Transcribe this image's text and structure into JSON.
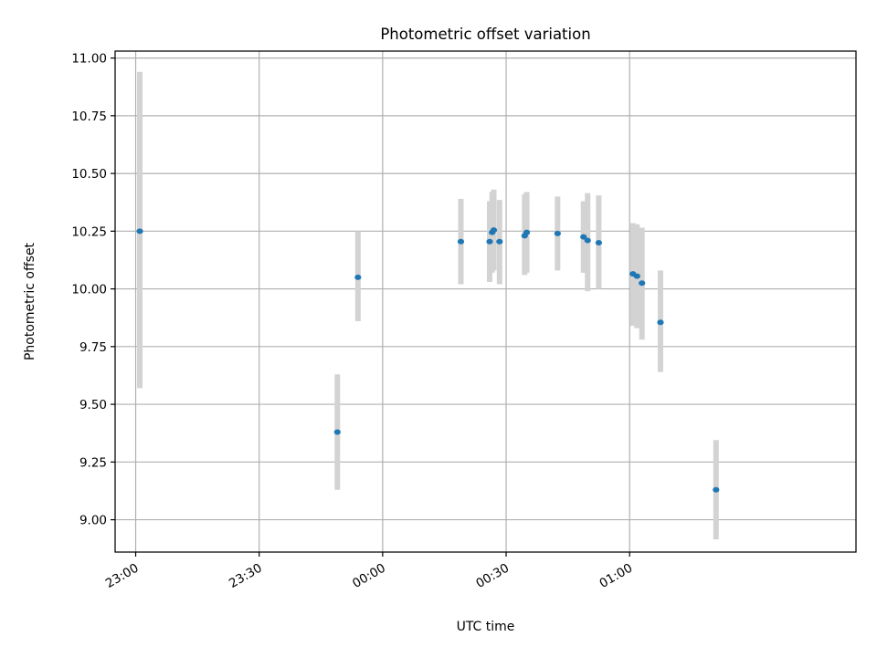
{
  "chart_data": {
    "type": "scatter",
    "title": "Photometric offset variation",
    "xlabel": "UTC time",
    "ylabel": "Photometric offset",
    "x_is_time": true,
    "xlim": [
      "22:55",
      "01:55"
    ],
    "ylim": [
      8.86,
      11.03
    ],
    "x_ticks": [
      "23:00",
      "23:30",
      "00:00",
      "00:30",
      "01:00"
    ],
    "y_ticks": [
      "9.00",
      "9.25",
      "9.50",
      "9.75",
      "10.00",
      "10.25",
      "10.50",
      "10.75",
      "11.00"
    ],
    "grid": true,
    "point_color": "#1f77b4",
    "errorbar_color": "#d3d3d3",
    "series": [
      {
        "points": [
          {
            "x": "23:01",
            "y": 10.25,
            "low": 9.57,
            "high": 10.94
          },
          {
            "x": "23:49",
            "y": 9.38,
            "low": 9.13,
            "high": 9.63
          },
          {
            "x": "23:54",
            "y": 10.05,
            "low": 9.86,
            "high": 10.25
          },
          {
            "x": "00:19",
            "y": 10.205,
            "low": 10.02,
            "high": 10.39
          },
          {
            "x": "00:26",
            "y": 10.205,
            "low": 10.03,
            "high": 10.38
          },
          {
            "x": "00:26.6",
            "y": 10.245,
            "low": 10.07,
            "high": 10.42
          },
          {
            "x": "00:27",
            "y": 10.255,
            "low": 10.08,
            "high": 10.43
          },
          {
            "x": "00:28.4",
            "y": 10.205,
            "low": 10.02,
            "high": 10.385
          },
          {
            "x": "00:34.5",
            "y": 10.23,
            "low": 10.06,
            "high": 10.41
          },
          {
            "x": "00:35",
            "y": 10.245,
            "low": 10.07,
            "high": 10.42
          },
          {
            "x": "00:42.5",
            "y": 10.24,
            "low": 10.08,
            "high": 10.4
          },
          {
            "x": "00:48.8",
            "y": 10.225,
            "low": 10.07,
            "high": 10.38
          },
          {
            "x": "00:49.8",
            "y": 10.21,
            "low": 9.99,
            "high": 10.415
          },
          {
            "x": "00:52.5",
            "y": 10.2,
            "low": 10.0,
            "high": 10.405
          },
          {
            "x": "01:00.8",
            "y": 10.065,
            "low": 9.84,
            "high": 10.285
          },
          {
            "x": "01:01.8",
            "y": 10.055,
            "low": 9.83,
            "high": 10.28
          },
          {
            "x": "01:03",
            "y": 10.025,
            "low": 9.78,
            "high": 10.265
          },
          {
            "x": "01:07.5",
            "y": 9.855,
            "low": 9.64,
            "high": 10.08
          },
          {
            "x": "01:21",
            "y": 9.13,
            "low": 8.915,
            "high": 9.345
          }
        ]
      }
    ]
  }
}
